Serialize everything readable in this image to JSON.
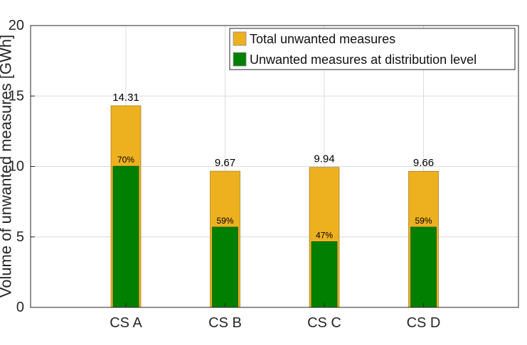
{
  "chart_data": {
    "type": "bar",
    "categories": [
      "CS A",
      "CS B",
      "CS C",
      "CS D"
    ],
    "series": [
      {
        "name": "Total unwanted measures",
        "color": "#EDB120",
        "values": [
          14.31,
          9.67,
          9.94,
          9.66
        ],
        "value_labels": [
          "14.31",
          "9.67",
          "9.94",
          "9.66"
        ]
      },
      {
        "name": "Unwanted measures at distribution level",
        "color": "#007F00",
        "values": [
          10.02,
          5.7,
          4.67,
          5.7
        ],
        "value_labels": [
          "70%",
          "59%",
          "47%",
          "59%"
        ]
      }
    ],
    "ylabel": "Volume of unwanted measures [GWh]",
    "ylim": [
      0,
      20
    ],
    "yticks": [
      0,
      5,
      10,
      15,
      20
    ],
    "grid": true,
    "legend_position": "top-right"
  }
}
